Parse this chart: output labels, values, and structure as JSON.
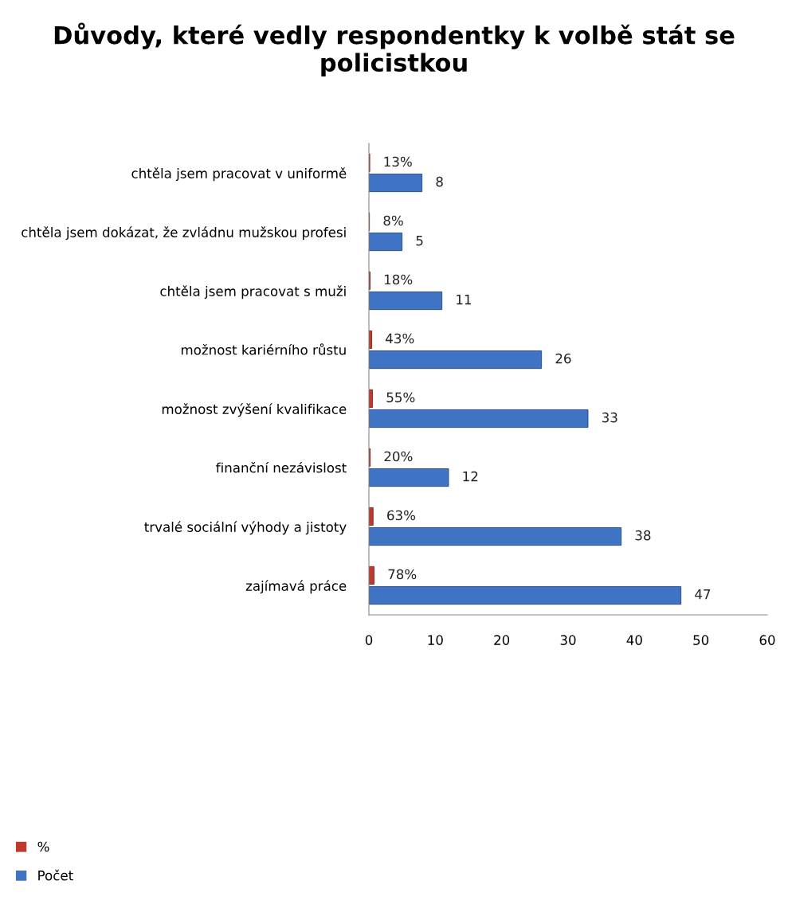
{
  "chart_data": {
    "type": "bar",
    "orientation": "horizontal",
    "title": "Důvody, které vedly respondentky k volbě stát se policistkou",
    "categories": [
      "chtěla jsem pracovat v uniformě",
      "chtěla jsem dokázat, že zvládnu mužskou profesi",
      "chtěla jsem pracovat s muži",
      "možnost kariérního růstu",
      "možnost zvýšení kvalifikace",
      "finanční nezávislost",
      "trvalé sociální výhody a jistoty",
      "zajímavá práce"
    ],
    "series": [
      {
        "name": "%",
        "color": "#c0392b",
        "values": [
          0.13,
          0.08,
          0.18,
          0.43,
          0.55,
          0.2,
          0.63,
          0.78
        ],
        "value_labels": [
          "13%",
          "8%",
          "18%",
          "43%",
          "55%",
          "20%",
          "63%",
          "78%"
        ]
      },
      {
        "name": "Počet",
        "color": "#3f74c4",
        "values": [
          8,
          5,
          11,
          26,
          33,
          12,
          38,
          47
        ],
        "value_labels": [
          "8",
          "5",
          "11",
          "26",
          "33",
          "12",
          "38",
          "47"
        ]
      }
    ],
    "xlim": [
      0,
      60
    ],
    "xticks": [
      0,
      10,
      20,
      30,
      40,
      50,
      60
    ],
    "grid": false,
    "legend": "bottom left"
  }
}
